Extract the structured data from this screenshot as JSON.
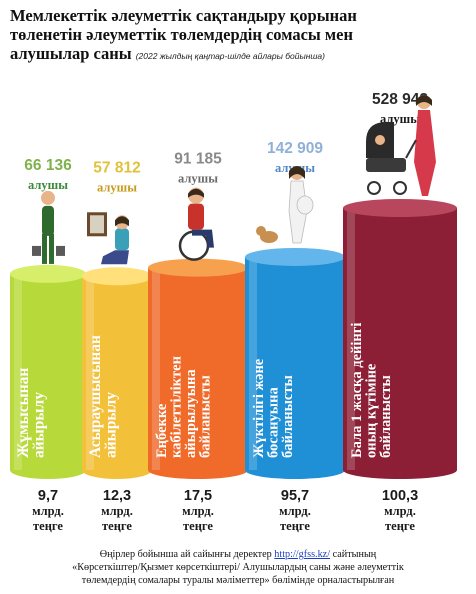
{
  "title_line1": "Мемлекеттік әлеуметтік сақтандыру қорынан",
  "title_line2": "төленетін әлеуметтік төлемдердің сомасы мен",
  "title_line3": "алушылар саны",
  "subtitle": "(2022 жылдың қаңтар-шілде айлары бойынша)",
  "footer": {
    "line1_pre": "Өңірлер бойынша ай сайынғы деректер ",
    "link": "http://gfss.kz/",
    "line1_post": " сайтының",
    "line2": "«Көрсеткіштер/Қызмет көрсеткіштері/ Алушылардың саны және әлеуметтік",
    "line3": "төлемдердің сомалары туралы мәліметтер» бөлімінде орналастырылған"
  },
  "chart_data": {
    "type": "bar",
    "title": "Мемлекеттік әлеуметтік сақтандыру қорынан төленетін әлеуметтік төлемдердің сомасы мен алушылар саны",
    "categories": [
      "Жұмысынан айырылу",
      "Асыраушысынан айырылу",
      "Еңбекке кабілеттіліктен айырылуына байланысты",
      "Жүктілігі және босануына байланысты",
      "Бала 1 жасқа дейінгі оның күтіміне байланысты"
    ],
    "category_lines": [
      [
        "Жұмысынан",
        "айырылу"
      ],
      [
        "Асыраушысынан",
        "айырылу"
      ],
      [
        "Еңбекке",
        "кабілеттіліктен",
        "айырылуына",
        "байланысты"
      ],
      [
        "Жүктілігі және",
        "босануына",
        "байланысты"
      ],
      [
        "Бала 1 жасқа дейінгі",
        "оның күтіміне",
        "байланысты"
      ]
    ],
    "recipients": [
      66136,
      57812,
      91185,
      142909,
      528942
    ],
    "recipient_labels": [
      "66 136",
      "57 812",
      "91 185",
      "142 909",
      "528 942"
    ],
    "recipient_unit": "алушы",
    "amounts": [
      9.7,
      12.3,
      17.5,
      95.7,
      100.3
    ],
    "amount_labels": [
      "9,7",
      "12,3",
      "17,5",
      "95,7",
      "100,3"
    ],
    "amount_unit_line1": "млрд.",
    "amount_unit_line2": "теңге",
    "colors": {
      "bars": [
        "#b8d93a",
        "#f3c03a",
        "#f06a2a",
        "#1f8fd6",
        "#8c1f36"
      ],
      "bar_tops": [
        "#d6ee6a",
        "#ffe07a",
        "#f7a04e",
        "#63b6ec",
        "#b8465c"
      ],
      "recipient_text": [
        "#7fb24a",
        "#e0c23a",
        "#8a8a8a",
        "#8fb0d8",
        "#2a2a2a"
      ],
      "unit_text": [
        "#3b8a3a",
        "#c79a1a",
        "#6a6a6a",
        "#4f86c6",
        "#1a1a1a"
      ]
    },
    "icons": [
      "worker-figure-icon",
      "sitting-woman-photo-icon",
      "wheelchair-man-icon",
      "pregnant-woman-dog-icon",
      "mother-stroller-icon"
    ]
  }
}
